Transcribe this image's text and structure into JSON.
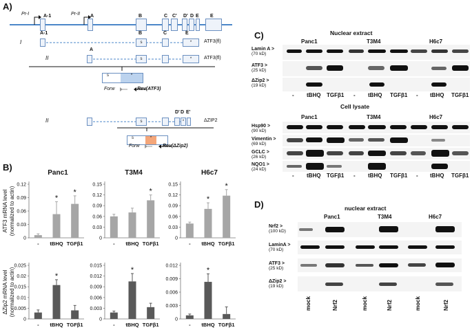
{
  "panels": {
    "a": "A)",
    "b": "B)",
    "c": "C)",
    "d": "D)"
  },
  "gene": {
    "exons_top": [
      "A-1",
      "A",
      "B",
      "C",
      "C'",
      "D'",
      "D",
      "E",
      "E"
    ],
    "promoters": [
      "Pr-I",
      "Pr-II"
    ],
    "transcript_numerals": [
      "I",
      "II",
      "II"
    ],
    "isoform_labels": [
      "ATF3(fl)",
      "ATF3(fl)",
      "ΔZIP2"
    ],
    "exon_a1": "A-1",
    "exon_a": "A",
    "exon_b": "B",
    "exon_c": "C",
    "exon_e": "E",
    "exon_d": "D'",
    "exon_dd": "D",
    "exon_e2": "E'",
    "start_s": "s",
    "stop_star": "*",
    "fwd": "Forw",
    "rev_atf3": "Rev(ATF3)",
    "rev_dzip2": "Rev(ΔZip2)"
  },
  "chart_data": [
    {
      "type": "bar",
      "title": "Panc1",
      "ylabel": "ATF3 mRNA level (normalized to actin)",
      "categories": [
        "-",
        "tBHQ",
        "TGFβ1"
      ],
      "values": [
        0.006,
        0.053,
        0.076
      ],
      "errors": [
        0.003,
        0.028,
        0.018
      ],
      "significant": [
        false,
        true,
        true
      ],
      "ylim": [
        0,
        0.12
      ],
      "yticks": [
        "0",
        "0.03",
        "0.06",
        "0.09",
        "0.12"
      ],
      "color": "#a6a6a6"
    },
    {
      "type": "bar",
      "title": "T3M4",
      "categories": [
        "-",
        "tBHQ",
        "TGFβ1"
      ],
      "values": [
        0.06,
        0.071,
        0.105
      ],
      "errors": [
        0.006,
        0.012,
        0.015
      ],
      "significant": [
        false,
        false,
        true
      ],
      "ylim": [
        0,
        0.15
      ],
      "yticks": [
        "0",
        "0.03",
        "0.06",
        "0.09",
        "0.12",
        "0.15"
      ],
      "color": "#a6a6a6"
    },
    {
      "type": "bar",
      "title": "H6c7",
      "categories": [
        "-",
        "tBHQ",
        "TGFβ1"
      ],
      "values": [
        0.04,
        0.081,
        0.118
      ],
      "errors": [
        0.004,
        0.017,
        0.017
      ],
      "significant": [
        false,
        true,
        true
      ],
      "ylim": [
        0,
        0.15
      ],
      "yticks": [
        "0",
        "0.03",
        "0.06",
        "0.09",
        "0.12",
        "0.15"
      ],
      "color": "#a6a6a6"
    },
    {
      "type": "bar",
      "ylabel": "ΔZip2 mRNA level (normalized to actin)",
      "categories": [
        "-",
        "tBHQ",
        "TGFβ1"
      ],
      "values": [
        0.003,
        0.0158,
        0.004
      ],
      "errors": [
        0.0012,
        0.0025,
        0.0023
      ],
      "significant": [
        false,
        true,
        false
      ],
      "ylim": [
        0,
        0.025
      ],
      "yticks": [
        "0",
        "0.005",
        "0.01",
        "0.015",
        "0.02",
        "0.025"
      ],
      "color": "#595959"
    },
    {
      "type": "bar",
      "categories": [
        "-",
        "tBHQ",
        "TGFβ1"
      ],
      "values": [
        0.0018,
        0.0105,
        0.0033
      ],
      "errors": [
        0.0004,
        0.0022,
        0.0011
      ],
      "significant": [
        false,
        true,
        false
      ],
      "ylim": [
        0,
        0.015
      ],
      "yticks": [
        "0",
        "0.003",
        "0.006",
        "0.009",
        "0.012",
        "0.015"
      ],
      "color": "#595959"
    },
    {
      "type": "bar",
      "categories": [
        "-",
        "tBHQ",
        "TGFβ1"
      ],
      "values": [
        0.0008,
        0.0083,
        0.0011
      ],
      "errors": [
        0.0003,
        0.0018,
        0.0016
      ],
      "significant": [
        false,
        true,
        false
      ],
      "ylim": [
        0,
        0.012
      ],
      "yticks": [
        "0",
        "0.003",
        "0.006",
        "0.009",
        "0.012"
      ],
      "color": "#595959"
    }
  ],
  "blot_c": {
    "nuclear_title": "Nuclear extract",
    "lysate_title": "Cell lysate",
    "cells": [
      "Panc1",
      "T3M4",
      "H6c7"
    ],
    "treatments": [
      "-",
      "tBHQ",
      "TGFβ1"
    ],
    "nuclear_markers": [
      {
        "name": "Lamin A >",
        "kd": "(70 kD)"
      },
      {
        "name": "ATF3 >",
        "kd": "(25 kD)"
      },
      {
        "name": "ΔZip2 >",
        "kd": "(19 kD)"
      }
    ],
    "lysate_markers": [
      {
        "name": "Hsp90 >",
        "kd": "(90 kD)"
      },
      {
        "name": "Vimentin >",
        "kd": "(69 kD)"
      },
      {
        "name": "GCLC >",
        "kd": "(26 kD)"
      },
      {
        "name": "NQO1 >",
        "kd": "(24 kD)"
      }
    ]
  },
  "blot_d": {
    "title": "nuclear extract",
    "cells": [
      "Panc1",
      "T3M4",
      "H6c7"
    ],
    "treatments": [
      "mock",
      "Nrf2"
    ],
    "markers": [
      {
        "name": "Nrf2 >",
        "kd": "(100 kD)"
      },
      {
        "name": "LaminA >",
        "kd": "(70 kD)"
      },
      {
        "name": "ATF3 >",
        "kd": "(25 kD)"
      },
      {
        "name": "ΔZip2 >",
        "kd": "(19 kD)"
      }
    ]
  },
  "significance_mark": "*"
}
